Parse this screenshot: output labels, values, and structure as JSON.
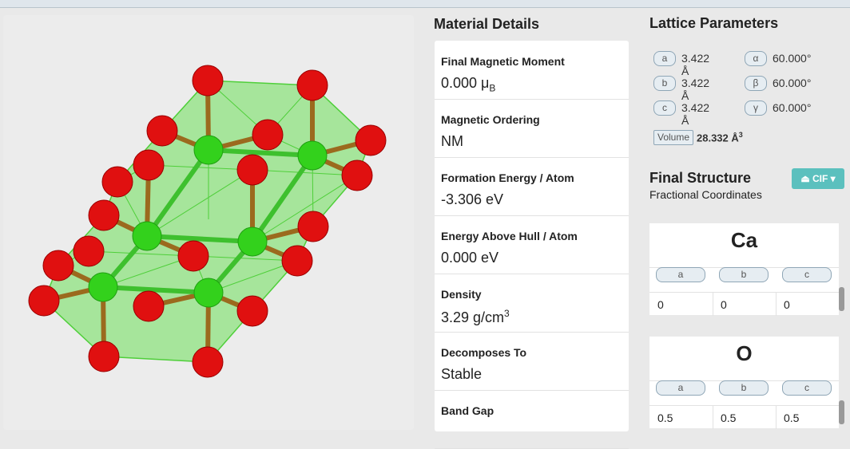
{
  "details": {
    "title": "Material Details",
    "rows": [
      {
        "label": "Final Magnetic Moment",
        "value": "0.000 μ",
        "sub": "B"
      },
      {
        "label": "Magnetic Ordering",
        "value": "NM"
      },
      {
        "label": "Formation Energy / Atom",
        "value": "-3.306 eV"
      },
      {
        "label": "Energy Above Hull / Atom",
        "value": "0.000 eV"
      },
      {
        "label": "Density",
        "value": "3.29 g/cm",
        "sup": "3"
      },
      {
        "label": "Decomposes To",
        "value": "Stable"
      },
      {
        "label": "Band Gap"
      }
    ]
  },
  "lattice": {
    "title": "Lattice Parameters",
    "params": [
      {
        "name": "a",
        "value": "3.422 Å"
      },
      {
        "name": "α",
        "value": "60.000°"
      },
      {
        "name": "b",
        "value": "3.422 Å"
      },
      {
        "name": "β",
        "value": "60.000°"
      },
      {
        "name": "c",
        "value": "3.422 Å"
      },
      {
        "name": "γ",
        "value": "60.000°"
      }
    ],
    "volume": {
      "label": "Volume",
      "value": "28.332 Å",
      "sup": "3"
    }
  },
  "structure": {
    "title": "Final Structure",
    "subtitle": "Fractional Coordinates",
    "button": "CIF",
    "sites": [
      {
        "element": "Ca",
        "columns": [
          "a",
          "b",
          "c"
        ],
        "coords": [
          "0",
          "0",
          "0"
        ]
      },
      {
        "element": "O",
        "columns": [
          "a",
          "b",
          "c"
        ],
        "coords": [
          "0.5",
          "0.5",
          "0.5"
        ]
      }
    ]
  }
}
